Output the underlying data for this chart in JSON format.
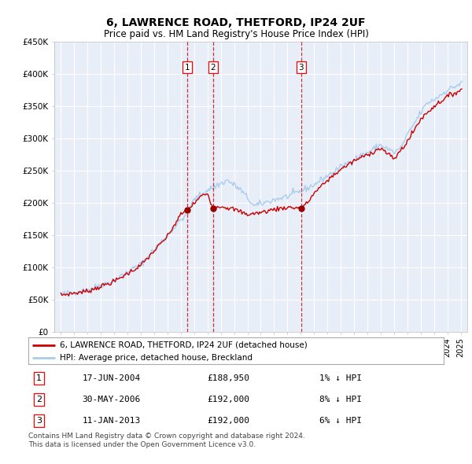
{
  "title": "6, LAWRENCE ROAD, THETFORD, IP24 2UF",
  "subtitle": "Price paid vs. HM Land Registry's House Price Index (HPI)",
  "ylim": [
    0,
    450000
  ],
  "yticks": [
    0,
    50000,
    100000,
    150000,
    200000,
    250000,
    300000,
    350000,
    400000,
    450000
  ],
  "ytick_labels": [
    "£0",
    "£50K",
    "£100K",
    "£150K",
    "£200K",
    "£250K",
    "£300K",
    "£350K",
    "£400K",
    "£450K"
  ],
  "xlim_start": 1994.5,
  "xlim_end": 2025.5,
  "transactions": [
    {
      "num": 1,
      "date": "17-JUN-2004",
      "price": 188950,
      "pct": "1%",
      "direction": "↓",
      "year": 2004.46
    },
    {
      "num": 2,
      "date": "30-MAY-2006",
      "price": 192000,
      "pct": "8%",
      "direction": "↓",
      "year": 2006.41
    },
    {
      "num": 3,
      "date": "11-JAN-2013",
      "price": 192000,
      "pct": "6%",
      "direction": "↓",
      "year": 2013.03
    }
  ],
  "legend_line1": "6, LAWRENCE ROAD, THETFORD, IP24 2UF (detached house)",
  "legend_line2": "HPI: Average price, detached house, Breckland",
  "footer_line1": "Contains HM Land Registry data © Crown copyright and database right 2024.",
  "footer_line2": "This data is licensed under the Open Government Licence v3.0.",
  "property_line_color": "#cc0000",
  "hpi_line_color": "#aaccee",
  "plot_bg_color": "#e8eef8"
}
